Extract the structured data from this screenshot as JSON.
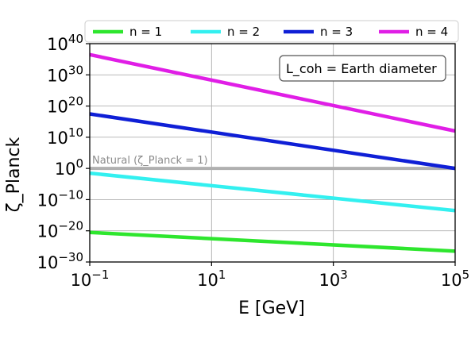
{
  "chart_data": {
    "type": "line",
    "xscale": "log",
    "yscale": "log",
    "xlim": [
      0.1,
      100000
    ],
    "ylim": [
      1e-30,
      1e+40
    ],
    "xlabel": "E [GeV]",
    "ylabel": "ζ_Planck",
    "xticks": [
      {
        "value": 0.1,
        "base": "10",
        "exp": "−1"
      },
      {
        "value": 10,
        "base": "10",
        "exp": "1"
      },
      {
        "value": 1000,
        "base": "10",
        "exp": "3"
      },
      {
        "value": 100000,
        "base": "10",
        "exp": "5"
      }
    ],
    "yticks": [
      {
        "value": 1e-30,
        "base": "10",
        "exp": "−30"
      },
      {
        "value": 1e-20,
        "base": "10",
        "exp": "−20"
      },
      {
        "value": 1e-10,
        "base": "10",
        "exp": "−10"
      },
      {
        "value": 1,
        "base": "10",
        "exp": "0"
      },
      {
        "value": 10000000000.0,
        "base": "10",
        "exp": "10"
      },
      {
        "value": 1e+20,
        "base": "10",
        "exp": "20"
      },
      {
        "value": 1e+30,
        "base": "10",
        "exp": "30"
      },
      {
        "value": 1e+40,
        "base": "10",
        "exp": "40"
      }
    ],
    "grid": true,
    "legend_position": "top, outside plot",
    "series": [
      {
        "name": "n = 1",
        "color": "#2ee62e",
        "x": [
          0.1,
          100000
        ],
        "y": [
          3e-21,
          3e-27
        ]
      },
      {
        "name": "n = 2",
        "color": "#33f0f0",
        "x": [
          0.1,
          100000
        ],
        "y": [
          0.03,
          3e-14
        ]
      },
      {
        "name": "n = 3",
        "color": "#0f1fd6",
        "x": [
          0.1,
          100000
        ],
        "y": [
          3e+17,
          1.0
        ]
      },
      {
        "name": "n = 4",
        "color": "#e01ee6",
        "x": [
          0.1,
          100000
        ],
        "y": [
          3e+36,
          1000000000000.0
        ]
      }
    ],
    "reference_line": {
      "y": 1,
      "color": "#b0b0b0",
      "label": "Natural (ζ_Planck = 1)"
    },
    "annotation": "L_coh = Earth diameter"
  }
}
